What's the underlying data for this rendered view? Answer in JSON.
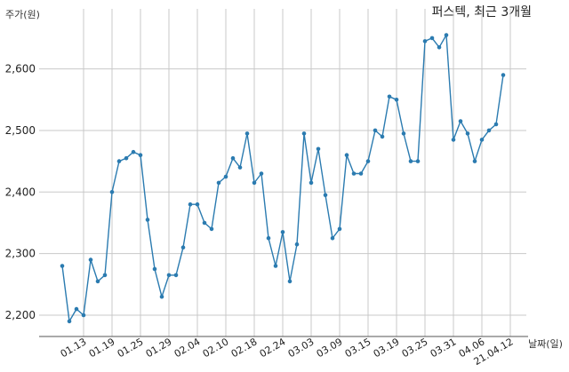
{
  "chart_data": {
    "type": "line",
    "title": "퍼스텍, 최근 3개월",
    "ylabel": "주가(원)",
    "xlabel": "날짜(일)",
    "ylim": [
      2170,
      2680
    ],
    "yticks": [
      2200,
      2300,
      2400,
      2500,
      2600
    ],
    "ytick_labels": [
      "2,200",
      "2,300",
      "2,400",
      "2,500",
      "2,600"
    ],
    "xtick_labels": [
      "01.13",
      "01.19",
      "01.25",
      "01.29",
      "02.04",
      "02.10",
      "02.18",
      "02.24",
      "03.03",
      "03.09",
      "03.15",
      "03.19",
      "03.25",
      "03.31",
      "04.06",
      "21.04.12"
    ],
    "xtick_positions": [
      3,
      7,
      11,
      15,
      19,
      23,
      27,
      31,
      35,
      39,
      43,
      47,
      51,
      55,
      59,
      63
    ],
    "grid": true,
    "color": "#2b7bb0",
    "series": [
      {
        "values": [
          2280,
          2190,
          2210,
          2200,
          2290,
          2255,
          2265,
          2400,
          2450,
          2455,
          2465,
          2460,
          2355,
          2275,
          2230,
          2265,
          2265,
          2310,
          2380,
          2380,
          2350,
          2340,
          2415,
          2425,
          2455,
          2440,
          2495,
          2415,
          2430,
          2325,
          2280,
          2335,
          2255,
          2315,
          2495,
          2415,
          2470,
          2395,
          2325,
          2340,
          2460,
          2430,
          2430,
          2450,
          2500,
          2490,
          2555,
          2550,
          2495,
          2450,
          2450,
          2645,
          2650,
          2635,
          2655,
          2485,
          2515,
          2495,
          2450,
          2485,
          2500,
          2510,
          2590
        ]
      }
    ]
  }
}
